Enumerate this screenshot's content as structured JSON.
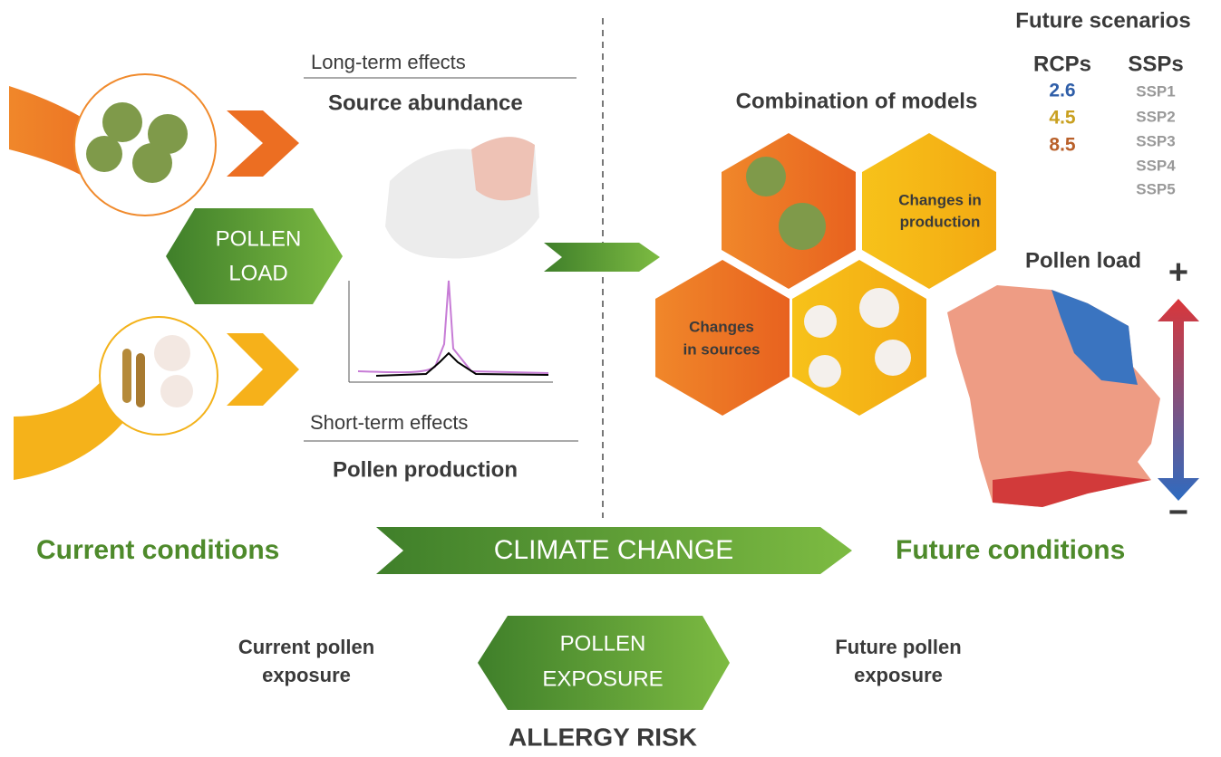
{
  "scenarios": {
    "title": "Future scenarios",
    "rcp_header": "RCPs",
    "ssp_header": "SSPs",
    "rcps": [
      "2.6",
      "4.5",
      "8.5"
    ],
    "ssps": [
      "SSP1",
      "SSP2",
      "SSP3",
      "SSP4",
      "SSP5"
    ]
  },
  "left": {
    "pollen_load": [
      "POLLEN",
      "LOAD"
    ],
    "long_term": "Long-term effects",
    "source_abundance": "Source abundance",
    "short_term": "Short-term effects",
    "pollen_production": "Pollen production"
  },
  "right": {
    "combination": "Combination of models",
    "changes_production": [
      "Changes in",
      "production"
    ],
    "changes_sources": [
      "Changes",
      "in sources"
    ],
    "pollen_load_map": "Pollen load",
    "plus": "+",
    "minus": "−"
  },
  "band": {
    "current": "Current conditions",
    "climate_change": "CLIMATE CHANGE",
    "future": "Future conditions"
  },
  "exposure": {
    "current": [
      "Current pollen",
      "exposure"
    ],
    "badge": [
      "POLLEN",
      "EXPOSURE"
    ],
    "future": [
      "Future pollen",
      "exposure"
    ],
    "risk": "ALLERGY RISK"
  }
}
